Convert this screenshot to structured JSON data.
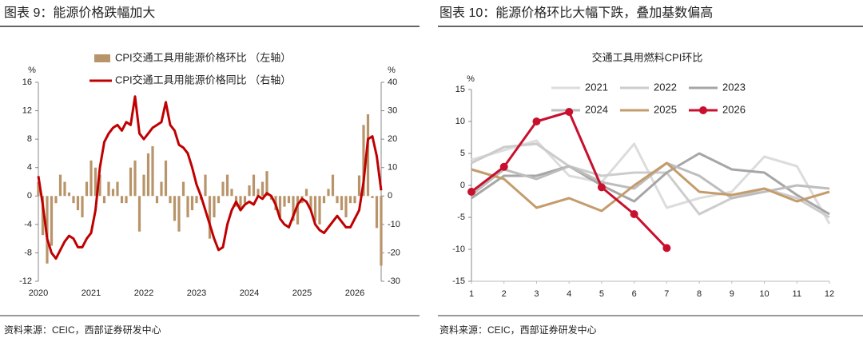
{
  "chart_data": [
    {
      "type": "combo",
      "title": "图表 9：能源价格跌幅加大",
      "source": "资料来源：CEIC，西部证券研发中心",
      "y_label": "%",
      "y2_label": "%",
      "categories": [
        "2020",
        null,
        null,
        null,
        null,
        null,
        null,
        null,
        null,
        null,
        null,
        null,
        "2021",
        null,
        null,
        null,
        null,
        null,
        null,
        null,
        null,
        null,
        null,
        null,
        "2022",
        null,
        null,
        null,
        null,
        null,
        null,
        null,
        null,
        null,
        null,
        null,
        "2023",
        null,
        null,
        null,
        null,
        null,
        null,
        null,
        null,
        null,
        null,
        null,
        "2024",
        null,
        null,
        null,
        null,
        null,
        null,
        null,
        null,
        null,
        null,
        null,
        "2025",
        null,
        null,
        null,
        null,
        null,
        null,
        null,
        null,
        null,
        null,
        null,
        "2026",
        null,
        null,
        null,
        null,
        null,
        null
      ],
      "series": [
        {
          "name": "CPI交通工具用能源价格环比 （左轴）",
          "type": "bar",
          "color": "#b8946a",
          "values": [
            2,
            -5.5,
            -9.5,
            -7,
            -1,
            3,
            2,
            0.5,
            -1,
            -2,
            -3,
            2,
            5,
            4,
            3,
            -1,
            2,
            1,
            2,
            -1,
            -1,
            4,
            5,
            -5,
            3,
            6,
            7,
            -1,
            2,
            5,
            -1,
            -3.5,
            -5,
            2,
            -3,
            -2,
            -1,
            -0.5,
            3,
            -6,
            -3,
            -1,
            2,
            3,
            1,
            -1.5,
            -2,
            -1,
            1.5,
            3,
            1,
            2,
            3.5,
            -0.5,
            -2,
            -3,
            -1.5,
            -1,
            -3.5,
            -4,
            -1,
            1,
            -2,
            -3.5,
            -4,
            -1,
            1,
            3,
            -1,
            -2,
            -3,
            -1,
            -1,
            2.9,
            10,
            11.5,
            -0.3,
            -4.5,
            -9.8
          ]
        },
        {
          "name": "CPI交通工具用能源价格同比 （右轴）",
          "type": "line",
          "color": "#c00000",
          "axis": "y2",
          "values": [
            7,
            -3,
            -15,
            -20,
            -22,
            -19,
            -16,
            -14,
            -15,
            -18,
            -18,
            -15,
            -13,
            -5,
            10,
            19,
            22,
            24,
            25,
            23,
            26,
            25,
            35,
            22,
            20,
            22,
            24,
            25,
            26,
            33,
            25,
            23,
            18,
            17,
            15,
            10,
            4,
            0,
            -5,
            -10,
            -15,
            -19,
            -18,
            -10,
            -5,
            -2,
            -5,
            -3,
            -2,
            -3,
            0,
            -1,
            1,
            0,
            -3,
            -8,
            -10,
            -11,
            -7,
            -3,
            -1,
            -2,
            -5,
            -10,
            -12,
            -13,
            -11,
            -9,
            -7,
            -9,
            -11,
            -11,
            -8,
            -5,
            5,
            20,
            21,
            14,
            2
          ]
        }
      ],
      "ylim": [
        -12,
        16
      ],
      "yticks": [
        -12,
        -8,
        -4,
        0,
        4,
        8,
        12,
        16
      ],
      "y2lim": [
        -30,
        40
      ],
      "y2ticks": [
        -30,
        -20,
        -10,
        0,
        10,
        20,
        30,
        40
      ],
      "grid": false
    },
    {
      "type": "line",
      "title": "图表 10：能源价格环比大幅下跌，叠加基数偏高",
      "subtitle": "交通工具用燃料CPI环比",
      "source": "资料来源：CEIC，西部证券研发中心",
      "y_label": "%",
      "x": [
        1,
        2,
        3,
        4,
        5,
        6,
        7,
        8,
        9,
        10,
        11,
        12
      ],
      "xlim": [
        1,
        12
      ],
      "xticks": [
        1,
        2,
        3,
        4,
        5,
        6,
        7,
        8,
        9,
        10,
        11,
        12
      ],
      "series": [
        {
          "name": "2021",
          "color": "#dcdcdc",
          "values": [
            4,
            5.5,
            7,
            1.5,
            0.5,
            6.5,
            -3.5,
            -2,
            -1,
            4.5,
            3,
            -6
          ]
        },
        {
          "name": "2022",
          "color": "#cccccc",
          "values": [
            3.5,
            6,
            6.5,
            3,
            1.5,
            2,
            2,
            -4.5,
            -2,
            -0.5,
            -2,
            -5
          ]
        },
        {
          "name": "2023",
          "color": "#a6a6a6",
          "values": [
            -2,
            1.5,
            1.5,
            3,
            0,
            -2.5,
            2,
            5,
            2.5,
            2,
            -1.5,
            -4.5
          ]
        },
        {
          "name": "2024",
          "color": "#bdbdbd",
          "values": [
            -1.5,
            2.5,
            1,
            3,
            0.5,
            -0.5,
            3.5,
            1.5,
            -2,
            -1,
            0,
            -0.5
          ]
        },
        {
          "name": "2025",
          "color": "#c49c6c",
          "values": [
            2.5,
            1,
            -3.5,
            -2,
            -4,
            0,
            3.5,
            -1,
            -1.5,
            -0.5,
            -2.5,
            -1
          ]
        },
        {
          "name": "2026",
          "color": "#c8102e",
          "marker": true,
          "values": [
            -1,
            2.9,
            10,
            11.5,
            -0.3,
            -4.5,
            -9.8,
            null,
            null,
            null,
            null,
            null
          ]
        }
      ],
      "ylim": [
        -15,
        15
      ],
      "yticks": [
        -15,
        -10,
        -5,
        0,
        5,
        10,
        15
      ],
      "grid": false
    }
  ]
}
